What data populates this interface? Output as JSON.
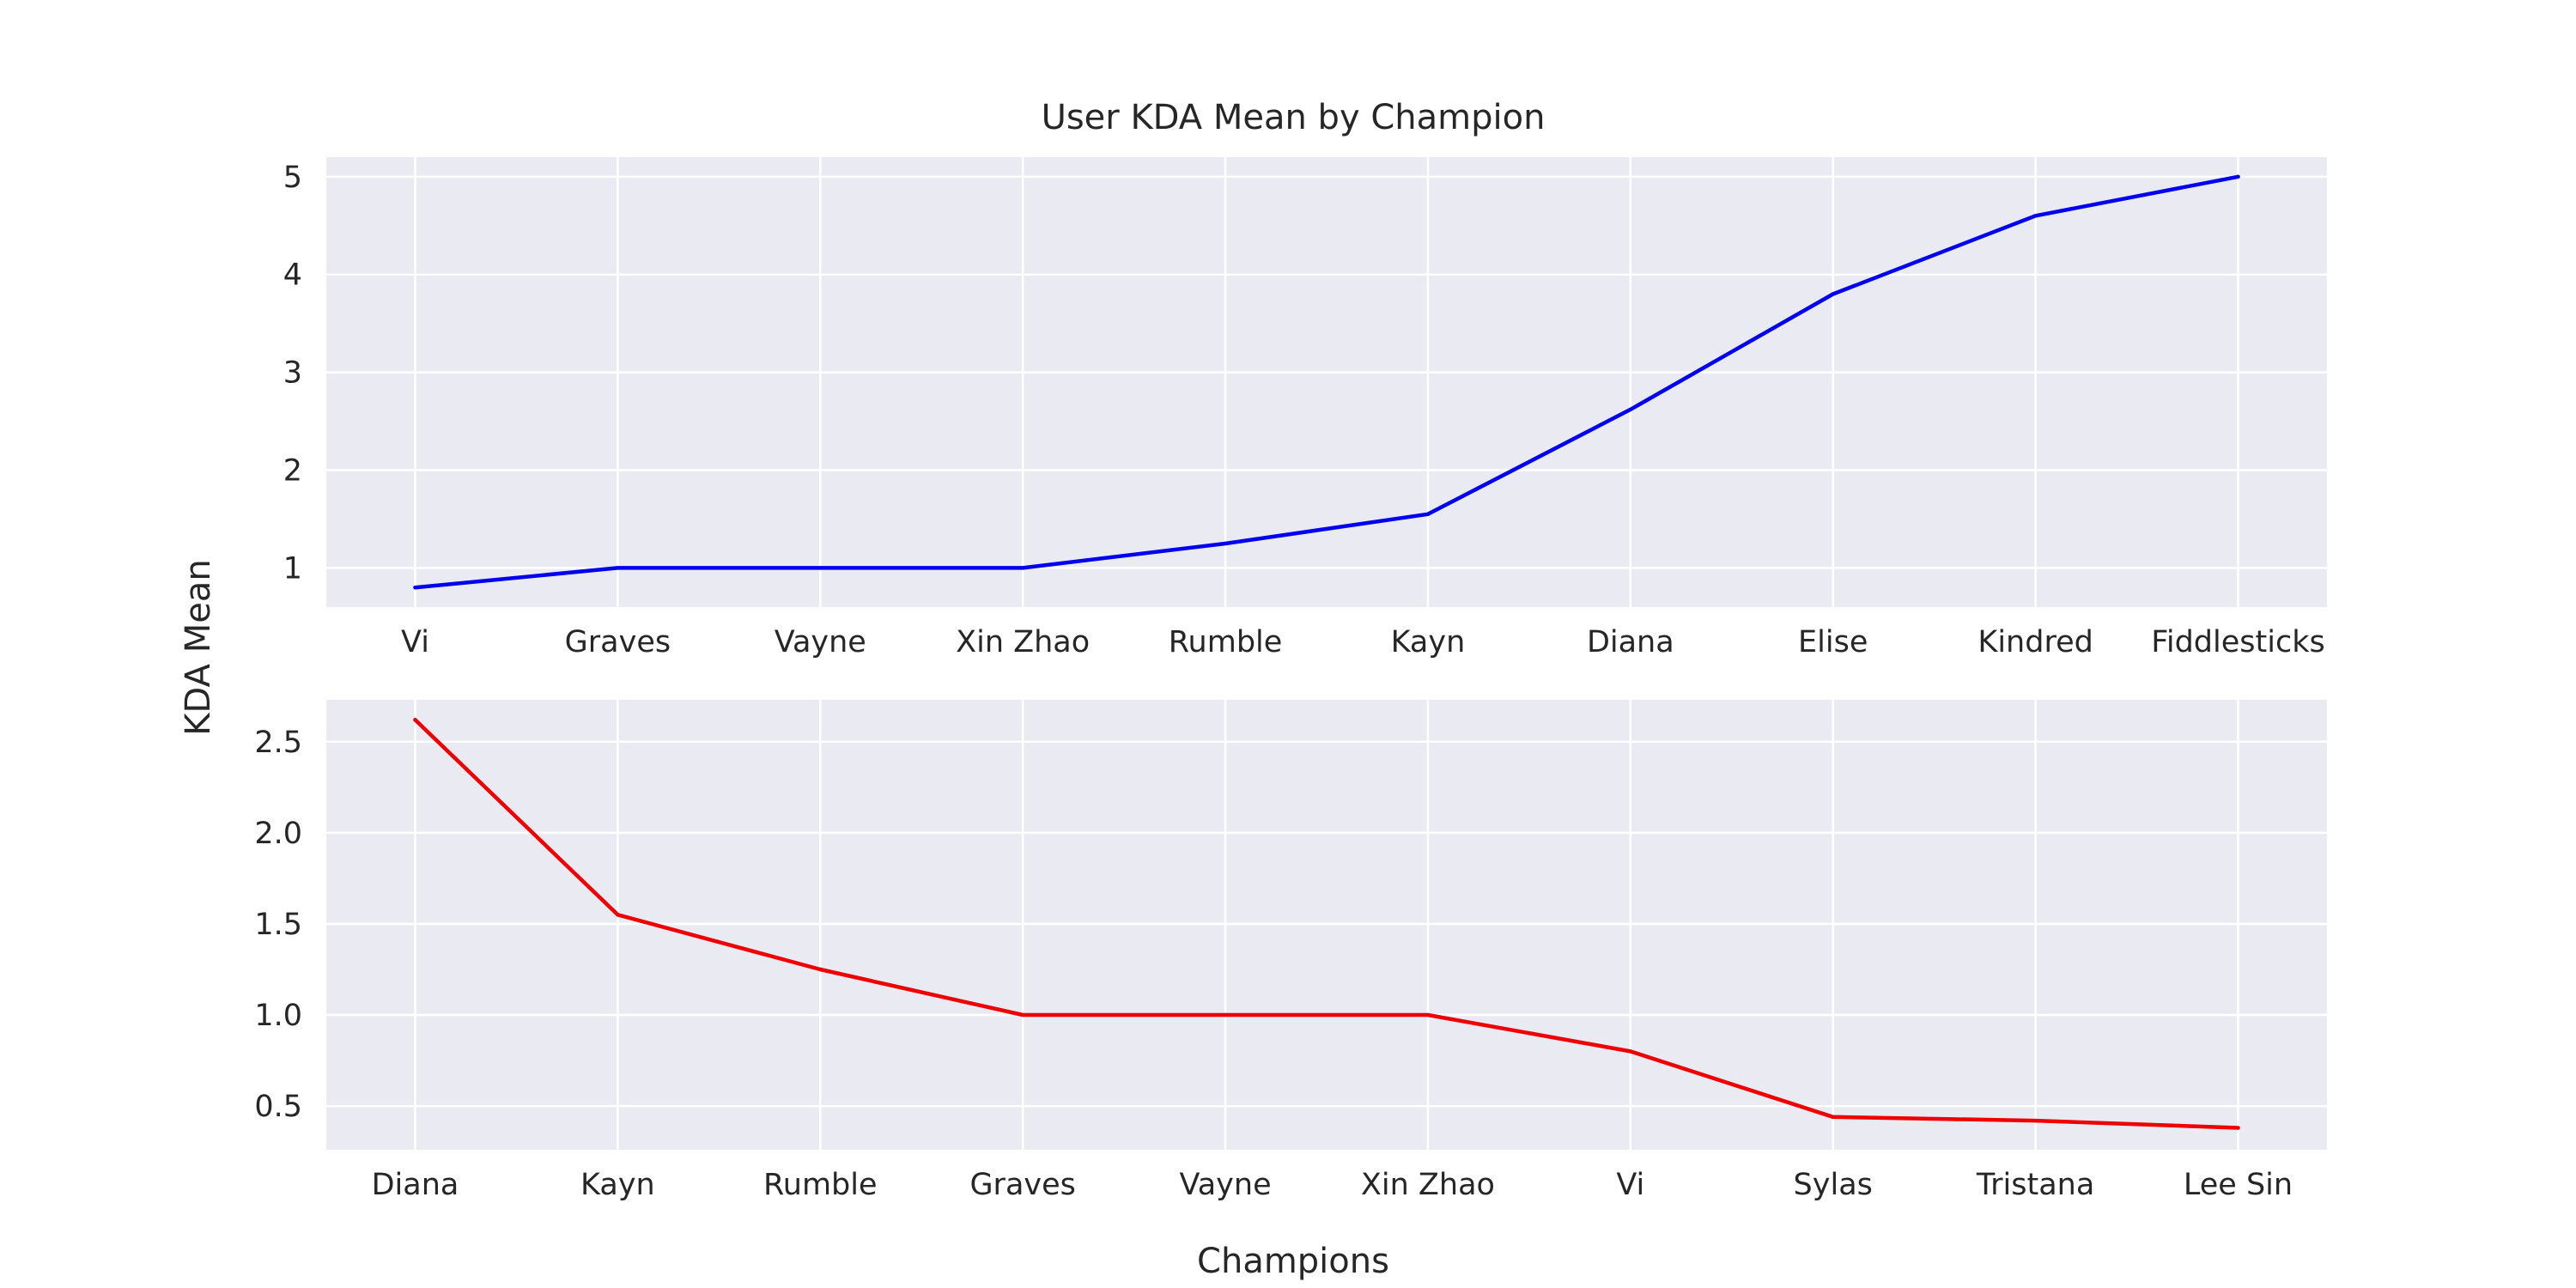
{
  "figure": {
    "title": "User KDA Mean by Champion",
    "xlabel": "Champions",
    "ylabel": "KDA Mean"
  },
  "chart_data": [
    {
      "type": "line",
      "title": "",
      "xlabel": "",
      "ylabel": "",
      "categories": [
        "Vi",
        "Graves",
        "Vayne",
        "Xin Zhao",
        "Rumble",
        "Kayn",
        "Diana",
        "Elise",
        "Kindred",
        "Fiddlesticks"
      ],
      "series": [
        {
          "values": [
            0.8,
            1.0,
            1.0,
            1.0,
            1.25,
            1.55,
            2.62,
            3.8,
            4.6,
            5.0
          ],
          "color": "#0000ee"
        }
      ],
      "ylim": [
        0.6,
        5.2
      ],
      "yticks": [
        1,
        2,
        3,
        4,
        5
      ],
      "ytick_labels": [
        "1",
        "2",
        "3",
        "4",
        "5"
      ],
      "grid": true,
      "legend": "none"
    },
    {
      "type": "line",
      "title": "",
      "xlabel": "",
      "ylabel": "",
      "categories": [
        "Diana",
        "Kayn",
        "Rumble",
        "Graves",
        "Vayne",
        "Xin Zhao",
        "Vi",
        "Sylas",
        "Tristana",
        "Lee Sin"
      ],
      "series": [
        {
          "values": [
            2.62,
            1.55,
            1.25,
            1.0,
            1.0,
            1.0,
            0.8,
            0.44,
            0.42,
            0.38
          ],
          "color": "#ee0000"
        }
      ],
      "ylim": [
        0.26,
        2.73
      ],
      "yticks": [
        0.5,
        1.0,
        1.5,
        2.0,
        2.5
      ],
      "ytick_labels": [
        "0.5",
        "1.0",
        "1.5",
        "2.0",
        "2.5"
      ],
      "grid": true,
      "legend": "none"
    }
  ]
}
